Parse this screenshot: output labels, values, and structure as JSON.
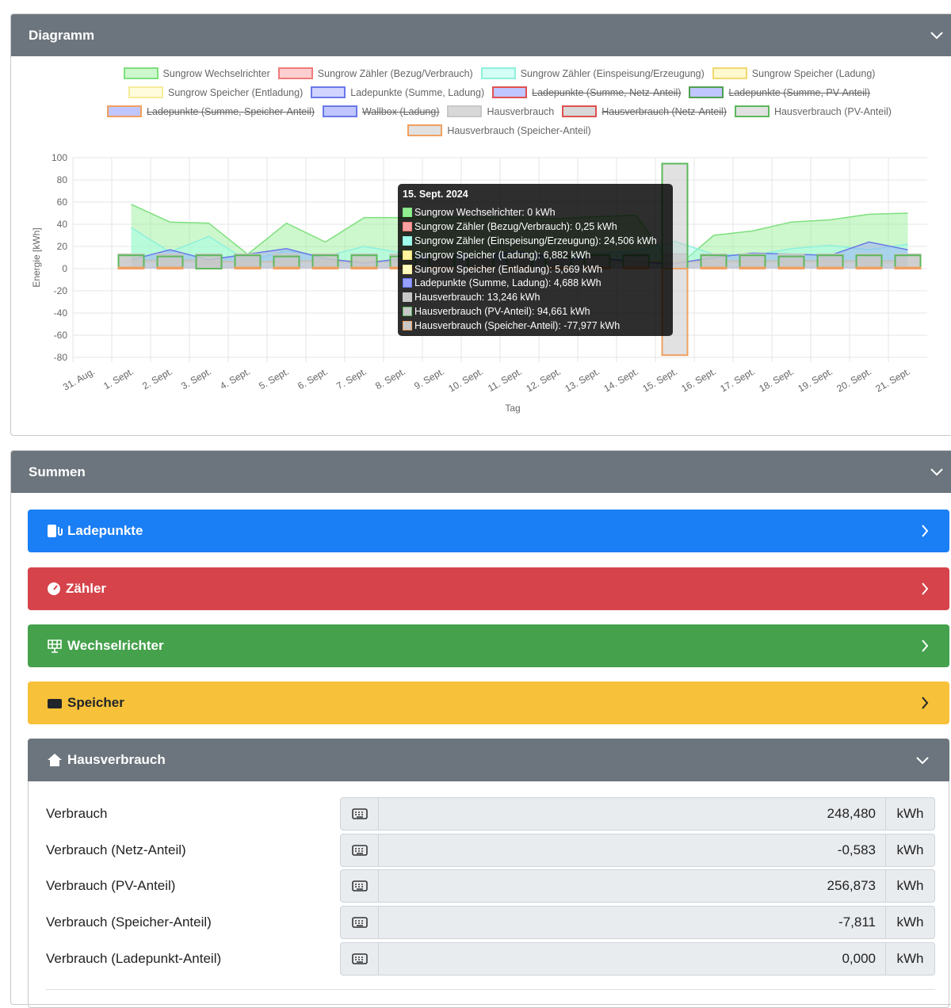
{
  "panels": {
    "diagramm": "Diagramm",
    "summen": "Summen"
  },
  "chart_data": {
    "type": "combo",
    "x_label": "Tag",
    "y_label": "Energie [kWh]",
    "categories": [
      "31. Aug.",
      "1. Sept.",
      "2. Sept.",
      "3. Sept.",
      "4. Sept.",
      "5. Sept.",
      "6. Sept.",
      "7. Sept.",
      "8. Sept.",
      "9. Sept.",
      "10. Sept.",
      "11. Sept.",
      "12. Sept.",
      "13. Sept.",
      "14. Sept.",
      "15. Sept.",
      "16. Sept.",
      "17. Sept.",
      "18. Sept.",
      "19. Sept.",
      "20. Sept.",
      "21. Sept."
    ],
    "ylim": [
      -80,
      100
    ],
    "yticks": [
      -80,
      -60,
      -40,
      -20,
      0,
      20,
      40,
      60,
      80,
      100
    ],
    "grid": true,
    "series": [
      {
        "name": "Sungrow Wechselrichter",
        "type": "line",
        "color": "#7ee07e",
        "fill": "rgba(144,238,144,0.45)",
        "values": [
          null,
          58,
          42,
          41,
          13,
          41,
          24,
          46,
          46,
          46,
          46,
          46,
          45,
          47,
          48,
          0,
          30,
          34,
          42,
          44,
          49,
          50
        ]
      },
      {
        "name": "Sungrow Zähler (Bezug/Verbrauch)",
        "type": "line",
        "color": "#f07a7a",
        "fill": "rgba(248,160,160,0.5)",
        "values": [
          null,
          1,
          1,
          2,
          1,
          1,
          1,
          1,
          1,
          1,
          1,
          1,
          1,
          1,
          1,
          0.25,
          1,
          1,
          1,
          1,
          1,
          1
        ]
      },
      {
        "name": "Sungrow Zähler (Einspeisung/Erzeugung)",
        "type": "line",
        "color": "#8ef0dc",
        "fill": "rgba(160,255,235,0.45)",
        "values": [
          null,
          37,
          15,
          29,
          7,
          16,
          11,
          20,
          14,
          12,
          10,
          13,
          12,
          14,
          16,
          24.506,
          13,
          12,
          18,
          21,
          17,
          22
        ]
      },
      {
        "name": "Sungrow Speicher (Ladung)",
        "type": "line",
        "color": "#f0d870",
        "fill": "rgba(255,243,160,0.5)",
        "values": [
          null,
          7,
          8,
          7,
          6,
          7,
          7,
          7,
          7,
          7,
          7,
          7,
          7,
          7,
          7,
          6.882,
          7,
          7,
          7,
          7,
          7,
          7
        ]
      },
      {
        "name": "Sungrow Speicher (Entladung)",
        "type": "line",
        "color": "#f4ec9a",
        "fill": "rgba(255,250,190,0.5)",
        "values": [
          null,
          5,
          6,
          5,
          6,
          5,
          6,
          5,
          6,
          5,
          6,
          5,
          5,
          5,
          5,
          5.669,
          5,
          6,
          5,
          6,
          5,
          5
        ]
      },
      {
        "name": "Ladepunkte (Summe, Ladung)",
        "type": "line",
        "color": "#6a78e8",
        "fill": "rgba(150,160,255,0.45)",
        "values": [
          null,
          8,
          17,
          8,
          13,
          18,
          9,
          5,
          9,
          13,
          12,
          15,
          9,
          10,
          6,
          4.688,
          10,
          14,
          13,
          12,
          24,
          17
        ]
      },
      {
        "name": "Ladepunkte (Summe, Netz-Anteil)",
        "type": "line",
        "color": "#e05050",
        "fill": "rgba(150,160,255,0.6)",
        "hidden": true
      },
      {
        "name": "Ladepunkte (Summe, PV-Anteil)",
        "type": "line",
        "color": "#50a050",
        "fill": "rgba(150,160,255,0.6)",
        "hidden": true
      },
      {
        "name": "Ladepunkte (Summe, Speicher-Anteil)",
        "type": "line",
        "color": "#f0a060",
        "fill": "rgba(150,160,255,0.6)",
        "hidden": true
      },
      {
        "name": "Wallbox (Ladung)",
        "type": "line",
        "color": "#6a78e8",
        "fill": "rgba(150,160,255,0.6)",
        "hidden": true
      },
      {
        "name": "Hausverbrauch",
        "type": "bar",
        "color": "#c8c8c8",
        "fill": "rgba(200,200,200,0.7)",
        "values": [
          null,
          13,
          13,
          13,
          13,
          13,
          13,
          13,
          13,
          13,
          13,
          13,
          13,
          13,
          13,
          13.246,
          13,
          13,
          13,
          13,
          13,
          13
        ]
      },
      {
        "name": "Hausverbrauch (Netz-Anteil)",
        "type": "bar",
        "color": "#e05050",
        "fill": "rgba(200,200,200,0.7)",
        "hidden": true
      },
      {
        "name": "Hausverbrauch (PV-Anteil)",
        "type": "bar",
        "color": "#5cb85c",
        "fill": "rgba(200,200,200,0.55)",
        "values": [
          null,
          12,
          11,
          12,
          12,
          11,
          12,
          12,
          11,
          12,
          12,
          12,
          11,
          12,
          12,
          94.661,
          12,
          12,
          11,
          12,
          12,
          12
        ]
      },
      {
        "name": "Hausverbrauch (Speicher-Anteil)",
        "type": "bar",
        "color": "#f0a060",
        "fill": "rgba(200,200,200,0.55)",
        "values": [
          null,
          1,
          1,
          0,
          1,
          1,
          1,
          1,
          1,
          1,
          1,
          1,
          1,
          1,
          1,
          -77.977,
          1,
          1,
          1,
          1,
          1,
          1
        ]
      }
    ],
    "tooltip": {
      "title": "15. Sept. 2024",
      "items": [
        "Sungrow Wechselrichter: 0 kWh",
        "Sungrow Zähler (Bezug/Verbrauch): 0,25 kWh",
        "Sungrow Zähler (Einspeisung/Erzeugung): 24,506 kWh",
        "Sungrow Speicher (Ladung): 6,882 kWh",
        "Sungrow Speicher (Entladung): 5,669 kWh",
        "Ladepunkte (Summe, Ladung): 4,688 kWh",
        "Hausverbrauch: 13,246 kWh",
        "Hausverbrauch (PV-Anteil): 94,661 kWh",
        "Hausverbrauch (Speicher-Anteil): -77,977 kWh"
      ]
    }
  },
  "sections": [
    "Ladepunkte",
    "Zähler",
    "Wechselrichter",
    "Speicher",
    "Hausverbrauch"
  ],
  "table": {
    "rows": [
      [
        "Verbrauch",
        "248,480",
        "kWh"
      ],
      [
        "Verbrauch (Netz-Anteil)",
        "-0,583",
        "kWh"
      ],
      [
        "Verbrauch (PV-Anteil)",
        "256,873",
        "kWh"
      ],
      [
        "Verbrauch (Speicher-Anteil)",
        "-7,811",
        "kWh"
      ],
      [
        "Verbrauch (Ladepunkt-Anteil)",
        "0,000",
        "kWh"
      ]
    ]
  }
}
